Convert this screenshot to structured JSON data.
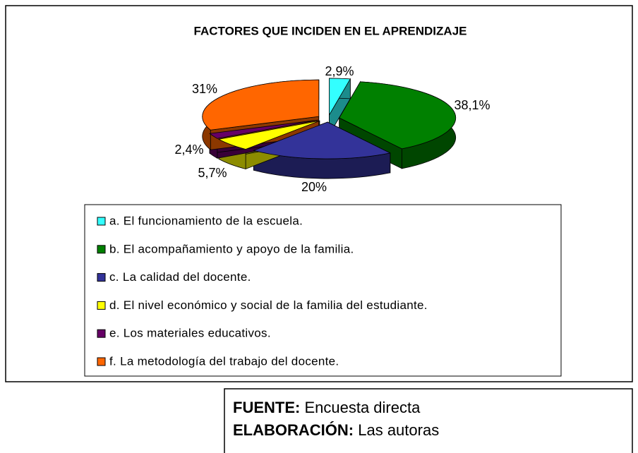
{
  "chart_data": {
    "type": "pie",
    "title": "FACTORES QUE INCIDEN EN EL APRENDIZAJE",
    "categories": [
      "a. El funcionamiento de la escuela.",
      "b. El acompañamiento y apoyo de la familia.",
      "c. La calidad del docente.",
      "d. El nivel económico y social de la familia del estudiante.",
      "e. Los materiales educativos.",
      "f.  La metodología del trabajo del docente."
    ],
    "values": [
      2.9,
      38.1,
      20,
      5.7,
      2.4,
      31
    ],
    "value_labels": [
      "2,9%",
      "38,1%",
      "20%",
      "5,7%",
      "2,4%",
      "31%"
    ],
    "colors": [
      "#33ffff",
      "#008000",
      "#333399",
      "#ffff00",
      "#660066",
      "#ff6600"
    ],
    "legend": "bottom"
  },
  "source": {
    "label": "FUENTE:",
    "text": "Encuesta directa"
  },
  "credit": {
    "label": "ELABORACIÓN:",
    "text": "Las autoras"
  }
}
